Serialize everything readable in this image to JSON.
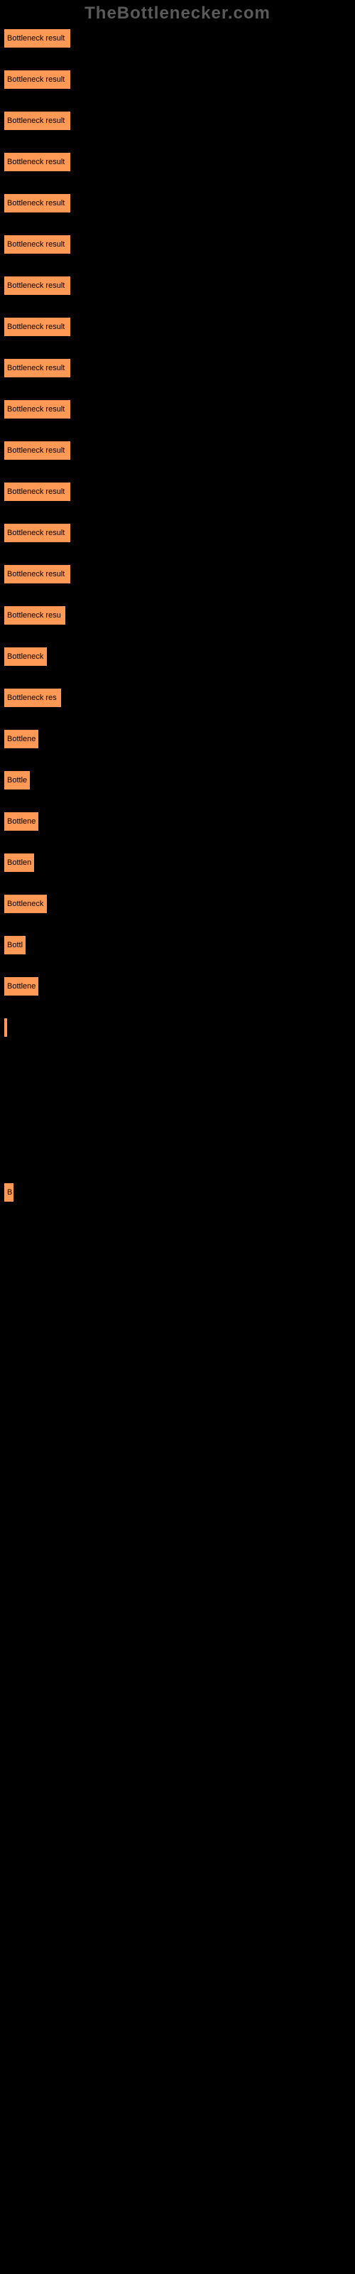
{
  "watermark": "TheBottlenecker.com",
  "chart": {
    "type": "bar",
    "bar_color": "#ff9955",
    "text_color": "#000000",
    "background_color": "#000000",
    "bars": [
      {
        "label": "Bottleneck result",
        "width": 95
      },
      {
        "label": "Bottleneck result",
        "width": 95
      },
      {
        "label": "Bottleneck result",
        "width": 95
      },
      {
        "label": "Bottleneck result",
        "width": 95
      },
      {
        "label": "Bottleneck result",
        "width": 95
      },
      {
        "label": "Bottleneck result",
        "width": 95
      },
      {
        "label": "Bottleneck result",
        "width": 95
      },
      {
        "label": "Bottleneck result",
        "width": 95
      },
      {
        "label": "Bottleneck result",
        "width": 95
      },
      {
        "label": "Bottleneck result",
        "width": 95
      },
      {
        "label": "Bottleneck result",
        "width": 95
      },
      {
        "label": "Bottleneck result",
        "width": 95
      },
      {
        "label": "Bottleneck result",
        "width": 95
      },
      {
        "label": "Bottleneck result",
        "width": 95
      },
      {
        "label": "Bottleneck resu",
        "width": 88
      },
      {
        "label": "Bottleneck",
        "width": 62
      },
      {
        "label": "Bottleneck res",
        "width": 82
      },
      {
        "label": "Bottlene",
        "width": 50
      },
      {
        "label": "Bottle",
        "width": 38
      },
      {
        "label": "Bottlene",
        "width": 50
      },
      {
        "label": "Bottlen",
        "width": 44
      },
      {
        "label": "Bottleneck",
        "width": 62
      },
      {
        "label": "Bottl",
        "width": 32
      },
      {
        "label": "Bottlene",
        "width": 50
      },
      {
        "label": "",
        "width": 4
      },
      {
        "label": "",
        "width": 0
      },
      {
        "label": "",
        "width": 0
      },
      {
        "label": "",
        "width": 0
      },
      {
        "label": "B",
        "width": 15
      }
    ]
  }
}
